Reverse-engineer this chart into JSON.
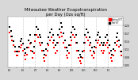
{
  "title": "Milwaukee Weather Evapotranspiration\nper Day (Ozs sq/ft)",
  "title_fontsize": 3.8,
  "background_color": "#d8d8d8",
  "plot_bg_color": "#ffffff",
  "legend_label_red": "Actual ET",
  "legend_label_black": "Ref ET",
  "legend_color_red": "#ff0000",
  "legend_color_black": "#000000",
  "red_x": [
    0,
    1,
    2,
    3,
    4,
    5,
    6,
    7,
    8,
    9,
    10,
    11,
    12,
    13,
    14,
    15,
    16,
    17,
    18,
    19,
    20,
    21,
    22,
    23,
    24,
    25,
    26,
    27,
    28,
    29,
    30,
    31,
    32,
    33,
    34,
    35,
    36,
    37,
    38,
    39,
    40,
    41,
    42,
    43,
    44,
    45,
    46,
    47,
    48,
    49,
    50,
    51,
    52,
    53,
    54,
    55,
    56,
    57,
    58,
    59,
    60,
    61,
    62,
    63,
    64,
    65,
    66,
    67,
    68,
    69,
    70,
    71,
    72,
    73,
    74,
    75,
    76,
    77,
    78,
    79,
    80,
    81,
    82,
    83
  ],
  "red_y": [
    0.175,
    0.16,
    0.145,
    0.125,
    0.1,
    0.085,
    0.085,
    0.1,
    0.115,
    0.125,
    0.105,
    0.085,
    0.07,
    0.09,
    0.115,
    0.13,
    0.105,
    0.075,
    0.095,
    0.14,
    0.165,
    0.155,
    0.135,
    0.125,
    0.105,
    0.075,
    0.065,
    0.085,
    0.105,
    0.125,
    0.145,
    0.155,
    0.135,
    0.115,
    0.095,
    0.105,
    0.135,
    0.155,
    0.175,
    0.16,
    0.135,
    0.115,
    0.085,
    0.075,
    0.095,
    0.125,
    0.145,
    0.165,
    0.155,
    0.135,
    0.105,
    0.075,
    0.065,
    0.055,
    0.075,
    0.105,
    0.135,
    0.155,
    0.145,
    0.125,
    0.105,
    0.085,
    0.075,
    0.095,
    0.115,
    0.135,
    0.145,
    0.125,
    0.105,
    0.095,
    0.105,
    0.125,
    0.135,
    0.115,
    0.095,
    0.075,
    0.065,
    0.085,
    0.105,
    0.125,
    0.14,
    0.12,
    0.1,
    0.085
  ],
  "black_x": [
    0,
    1,
    2,
    3,
    4,
    5,
    6,
    7,
    8,
    9,
    10,
    11,
    12,
    13,
    14,
    15,
    16,
    17,
    18,
    19,
    20,
    21,
    22,
    23,
    24,
    25,
    26,
    27,
    28,
    29,
    30,
    31,
    32,
    33,
    34,
    35,
    36,
    37,
    38,
    39,
    40,
    41,
    42,
    43,
    44,
    45,
    46,
    47,
    48,
    49,
    50,
    51,
    52,
    53,
    54,
    55,
    56,
    57,
    58,
    59,
    60,
    61,
    62,
    63,
    64,
    65,
    66,
    67,
    68,
    69,
    70,
    71,
    72,
    73,
    74,
    75,
    76,
    77,
    78,
    79,
    80,
    81,
    82,
    83
  ],
  "black_y": [
    0.195,
    0.18,
    0.16,
    0.14,
    0.12,
    0.1,
    0.1,
    0.12,
    0.14,
    0.15,
    0.13,
    0.11,
    0.095,
    0.115,
    0.145,
    0.165,
    0.135,
    0.1,
    0.12,
    0.165,
    0.195,
    0.185,
    0.165,
    0.155,
    0.135,
    0.105,
    0.09,
    0.11,
    0.13,
    0.155,
    0.175,
    0.185,
    0.165,
    0.145,
    0.125,
    0.135,
    0.165,
    0.185,
    0.21,
    0.195,
    0.17,
    0.145,
    0.115,
    0.105,
    0.125,
    0.155,
    0.175,
    0.195,
    0.185,
    0.165,
    0.135,
    0.105,
    0.09,
    0.08,
    0.1,
    0.135,
    0.165,
    0.185,
    0.175,
    0.155,
    0.135,
    0.115,
    0.1,
    0.12,
    0.145,
    0.165,
    0.175,
    0.155,
    0.135,
    0.125,
    0.135,
    0.155,
    0.165,
    0.145,
    0.125,
    0.105,
    0.09,
    0.11,
    0.135,
    0.155,
    0.17,
    0.145,
    0.125,
    0.1
  ],
  "vline_positions": [
    10,
    19,
    28,
    37,
    46,
    55,
    64,
    73
  ],
  "xtick_positions": [
    0,
    5,
    10,
    15,
    19,
    24,
    28,
    33,
    37,
    42,
    46,
    51,
    55,
    60,
    64,
    69,
    73,
    78,
    83
  ],
  "xtick_labels": [
    "5/1",
    "",
    "6/1",
    "",
    "7/1",
    "",
    "8/1",
    "",
    "9/1",
    "",
    "10/1",
    "",
    "11/1",
    "",
    "12/1",
    "",
    "1/1",
    "",
    ""
  ],
  "ylim": [
    0.04,
    0.235
  ],
  "ytick_values": [
    0.05,
    0.08,
    0.11,
    0.14,
    0.17,
    0.2
  ],
  "ytick_labels": [
    "0.05",
    "0.08",
    "0.11",
    "0.14",
    "0.17",
    "0.20"
  ]
}
